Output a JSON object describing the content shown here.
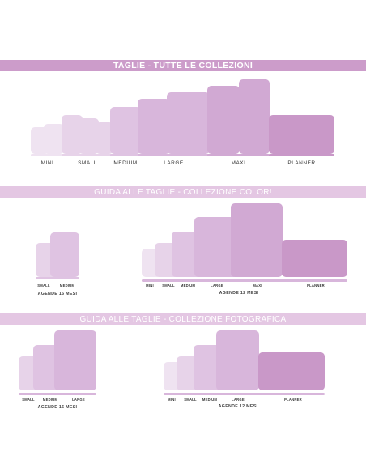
{
  "section_all": {
    "title": "TAGLIE - TUTTE LE COLLEZIONI",
    "labels": [
      "MINI",
      "SMALL",
      "MEDIUM",
      "LARGE",
      "MAXI",
      "PLANNER"
    ]
  },
  "section_color": {
    "title": "GUIDA ALLE TAGLIE - COLLEZIONE COLOR!",
    "group_16": {
      "labels": [
        "SMALL",
        "MEDIUM"
      ],
      "caption": "AGENDE 16 MESI"
    },
    "group_12": {
      "labels": [
        "MINI",
        "SMALL",
        "MEDIUM",
        "LARGE",
        "MAXI",
        "PLANNER"
      ],
      "caption": "AGENDE 12 MESI"
    }
  },
  "section_photo": {
    "title": "GUIDA ALLE TAGLIE - COLLEZIONE FOTOGRAFICA",
    "group_16": {
      "labels": [
        "SMALL",
        "MEDIUM",
        "LARGE"
      ],
      "caption": "AGENDE 16 MESI"
    },
    "group_12": {
      "labels": [
        "MINI",
        "SMALL",
        "MEDIUM",
        "LARGE",
        "PLANNER"
      ],
      "caption": "AGENDE 12 MESI"
    }
  },
  "colors": {
    "banner_primary": "#cc9cca",
    "banner_secondary": "#e4c7e3",
    "shades": [
      "#efe3f1",
      "#e7d3e9",
      "#dfc3e2",
      "#d8b6db",
      "#d1a9d3",
      "#c998c8"
    ]
  }
}
